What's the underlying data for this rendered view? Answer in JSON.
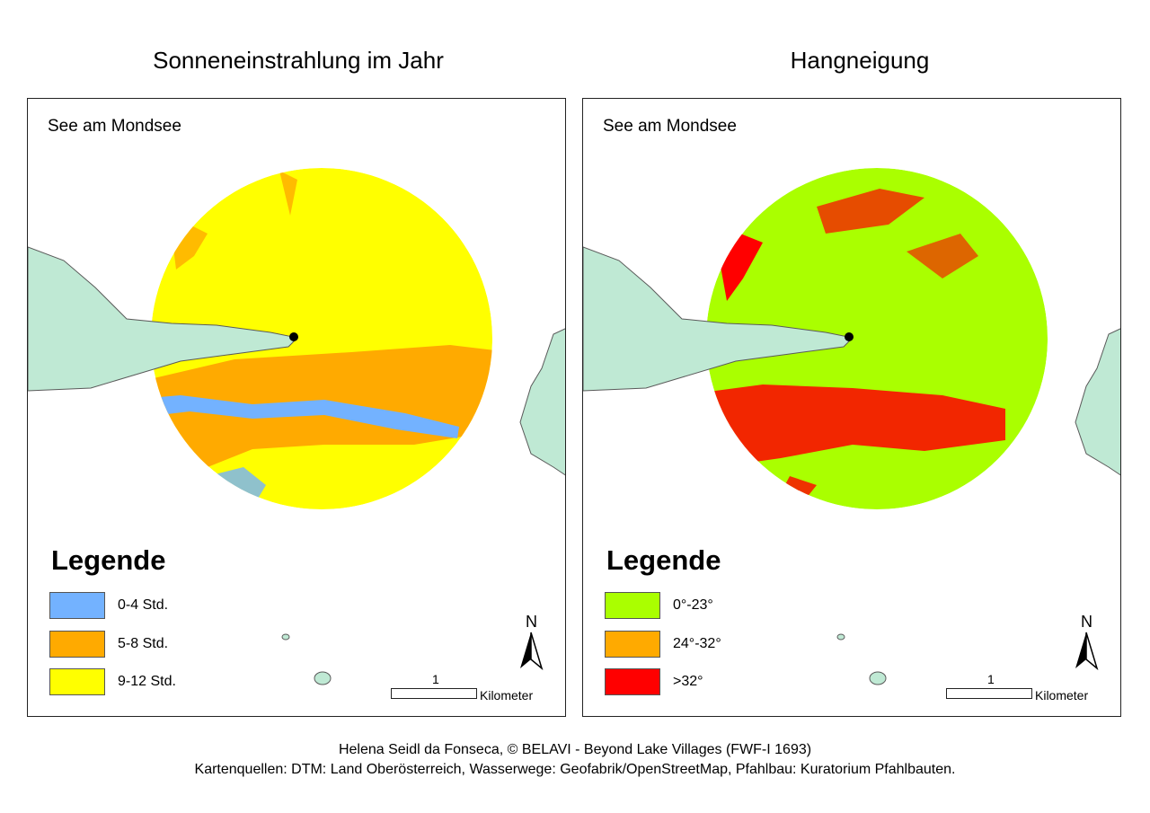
{
  "panels": [
    {
      "title": "Sonneneinstrahlung im Jahr",
      "site_label": "See am Mondsee",
      "legend_title": "Legende",
      "legend": [
        {
          "label": "0-4 Std.",
          "color": "#73b2ff"
        },
        {
          "label": "5-8 Std.",
          "color": "#ffaa00"
        },
        {
          "label": "9-12 Std.",
          "color": "#ffff00"
        }
      ],
      "north_label": "N",
      "scale_value": "1",
      "scale_unit": "Kilometer"
    },
    {
      "title": "Hangneigung",
      "site_label": "See am Mondsee",
      "legend_title": "Legende",
      "legend": [
        {
          "label": "0°-23°",
          "color": "#aaff00"
        },
        {
          "label": "24°-32°",
          "color": "#ffaa00"
        },
        {
          "label": ">32°",
          "color": "#ff0000"
        }
      ],
      "north_label": "N",
      "scale_value": "1",
      "scale_unit": "Kilometer"
    }
  ],
  "colors": {
    "water": "#bfe9d4",
    "water_edge": "#5a5a5a",
    "site_marker": "#000000"
  },
  "credits": {
    "line1": "Helena Seidl da Fonseca, © BELAVI - Beyond Lake Villages (FWF-I 1693)",
    "line2": "Kartenquellen: DTM: Land Oberösterreich, Wasserwege: Geofabrik/OpenStreetMap, Pfahlbau: Kuratorium Pfahlbauten."
  }
}
